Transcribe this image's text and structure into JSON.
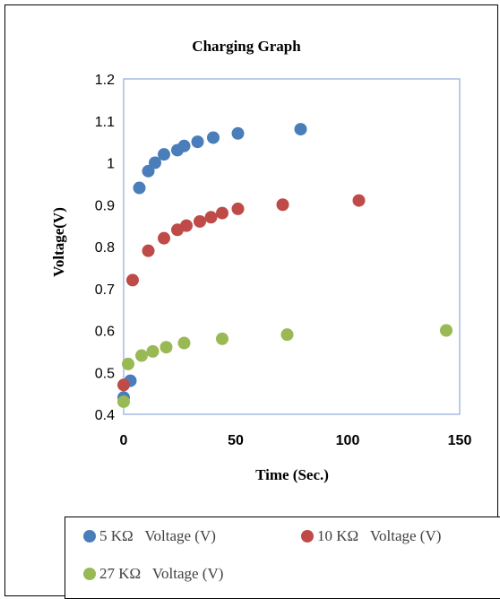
{
  "chart_data": {
    "type": "scatter",
    "title": "Charging Graph",
    "xlabel": "Time (Sec.)",
    "ylabel": "Voltage(V)",
    "xlim": [
      0,
      150
    ],
    "ylim": [
      0.4,
      1.2
    ],
    "xticks": [
      "0",
      "50",
      "100",
      "150"
    ],
    "yticks": [
      "0.4",
      "0.5",
      "0.6",
      "0.7",
      "0.8",
      "0.9",
      "1",
      "1.1",
      "1.2"
    ],
    "grid": false,
    "legend_position": "bottom",
    "series": [
      {
        "name": "5 KΩ   Voltage (V)",
        "color": "#4a7ebb",
        "points": [
          [
            0,
            0.44
          ],
          [
            3,
            0.48
          ],
          [
            7,
            0.94
          ],
          [
            11,
            0.98
          ],
          [
            14,
            1.0
          ],
          [
            18,
            1.02
          ],
          [
            24,
            1.03
          ],
          [
            27,
            1.04
          ],
          [
            33,
            1.05
          ],
          [
            40,
            1.06
          ],
          [
            51,
            1.07
          ],
          [
            79,
            1.08
          ]
        ]
      },
      {
        "name": "10 KΩ   Voltage (V)",
        "color": "#be4b48",
        "points": [
          [
            0,
            0.47
          ],
          [
            4,
            0.72
          ],
          [
            11,
            0.79
          ],
          [
            18,
            0.82
          ],
          [
            24,
            0.84
          ],
          [
            28,
            0.85
          ],
          [
            34,
            0.86
          ],
          [
            39,
            0.87
          ],
          [
            44,
            0.88
          ],
          [
            51,
            0.89
          ],
          [
            71,
            0.9
          ],
          [
            105,
            0.91
          ]
        ]
      },
      {
        "name": "27 KΩ   Voltage (V)",
        "color": "#98b954",
        "points": [
          [
            0,
            0.43
          ],
          [
            2,
            0.52
          ],
          [
            8,
            0.54
          ],
          [
            13,
            0.55
          ],
          [
            19,
            0.56
          ],
          [
            27,
            0.57
          ],
          [
            44,
            0.58
          ],
          [
            73,
            0.59
          ],
          [
            144,
            0.6
          ]
        ]
      }
    ]
  }
}
